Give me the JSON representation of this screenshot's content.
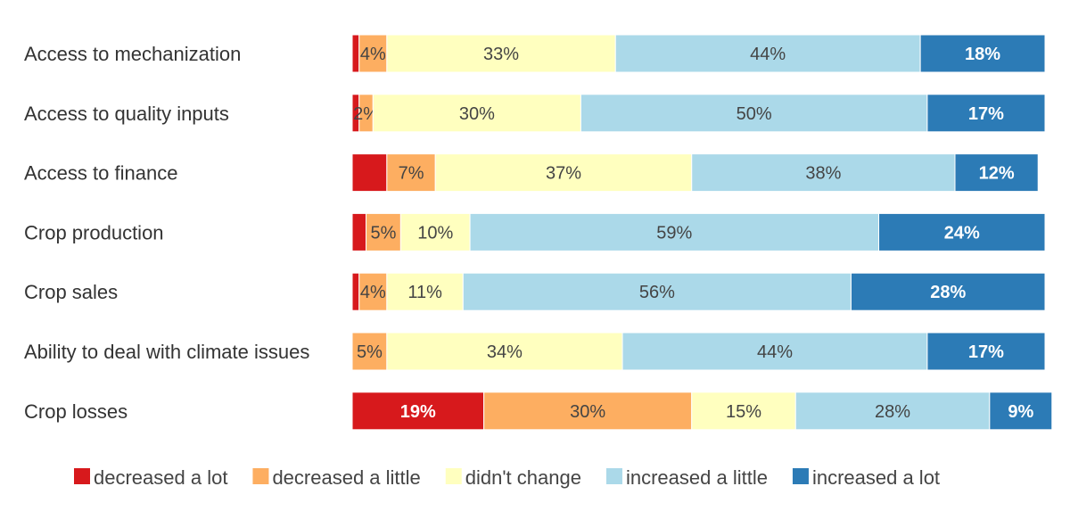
{
  "chart_data": {
    "type": "bar",
    "orientation": "horizontal",
    "stacked": true,
    "categories": [
      "Access to mechanization",
      "Access to quality inputs",
      "Access to finance",
      "Crop production",
      "Crop sales",
      "Ability to deal with climate issues",
      "Crop losses"
    ],
    "series": [
      {
        "name": "decreased a lot",
        "color": "#d7191c",
        "label_color": "#ffffff",
        "label_bold": true,
        "values": [
          1,
          1,
          5,
          2,
          1,
          0,
          19
        ],
        "labels": [
          "",
          "",
          "",
          "",
          "",
          "",
          "19%"
        ]
      },
      {
        "name": "decreased a little",
        "color": "#fdae61",
        "label_color": "#444444",
        "label_bold": false,
        "values": [
          4,
          2,
          7,
          5,
          4,
          5,
          30
        ],
        "labels": [
          "4%",
          "2%",
          "7%",
          "5%",
          "4%",
          "5%",
          "30%"
        ]
      },
      {
        "name": "didn't change",
        "color": "#ffffbf",
        "label_color": "#444444",
        "label_bold": false,
        "values": [
          33,
          30,
          37,
          10,
          11,
          34,
          15
        ],
        "labels": [
          "33%",
          "30%",
          "37%",
          "10%",
          "11%",
          "34%",
          "15%"
        ]
      },
      {
        "name": "increased a little",
        "color": "#abd9e9",
        "label_color": "#444444",
        "label_bold": false,
        "values": [
          44,
          50,
          38,
          59,
          56,
          44,
          28
        ],
        "labels": [
          "44%",
          "50%",
          "38%",
          "59%",
          "56%",
          "44%",
          "28%"
        ]
      },
      {
        "name": "increased a lot",
        "color": "#2c7bb6",
        "label_color": "#ffffff",
        "label_bold": true,
        "values": [
          18,
          17,
          12,
          24,
          28,
          17,
          9
        ],
        "labels": [
          "18%",
          "17%",
          "12%",
          "24%",
          "28%",
          "17%",
          "9%"
        ]
      }
    ],
    "xlim": [
      0,
      100
    ],
    "legend_position": "bottom",
    "grid": false
  }
}
